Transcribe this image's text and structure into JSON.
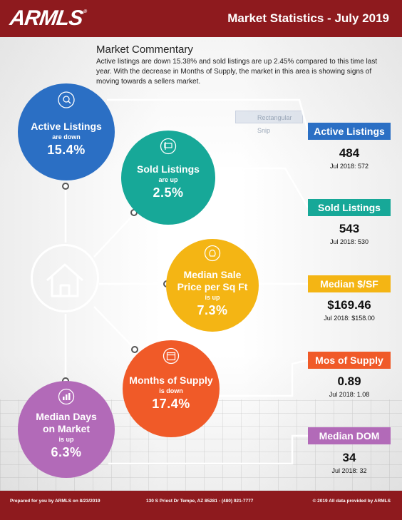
{
  "header": {
    "logo": "ARMLS",
    "logo_mark": "®",
    "title": "Market Statistics - July 2019"
  },
  "commentary": {
    "title": "Market Commentary",
    "text": "Active listings are down 15.38% and sold listings are up 2.45% compared to this time last year. With the decrease in Months of Supply, the market in this area is showing signs of moving towards a sellers market."
  },
  "ghost_label": "Rectangular Snip",
  "circles": {
    "active": {
      "title": "Active Listings",
      "sub": "are down",
      "value": "15.4%",
      "icon": "magnifier-house-icon"
    },
    "sold": {
      "title": "Sold Listings",
      "sub": "are up",
      "value": "2.5%",
      "icon": "sold-sign-icon"
    },
    "median": {
      "title_1": "Median Sale",
      "title_2": "Price per Sq Ft",
      "sub": "is up",
      "value": "7.3%",
      "icon": "money-bag-icon"
    },
    "mos": {
      "title": "Months of Supply",
      "sub": "is down",
      "value": "17.4%",
      "icon": "calendar-icon"
    },
    "dom": {
      "title_1": "Median Days",
      "title_2": "on Market",
      "sub": "is up",
      "value": "6.3%",
      "icon": "bar-chart-icon"
    }
  },
  "stats": {
    "active": {
      "label": "Active Listings",
      "value": "484",
      "prior": "Jul 2018: 572"
    },
    "sold": {
      "label": "Sold Listings",
      "value": "543",
      "prior": "Jul 2018: 530"
    },
    "median": {
      "label": "Median $/SF",
      "value": "$169.46",
      "prior": "Jul 2018: $158.00"
    },
    "mos": {
      "label": "Mos of Supply",
      "value": "0.89",
      "prior": "Jul 2018: 1.08"
    },
    "dom": {
      "label": "Median DOM",
      "value": "34",
      "prior": "Jul 2018: 32"
    }
  },
  "colors": {
    "brand": "#8e1a1e",
    "active": "#2b6fc4",
    "sold": "#17a898",
    "median": "#f4b514",
    "mos": "#f05a28",
    "dom": "#b26ab8"
  },
  "footer": {
    "left": "Prepared for you by ARMLS on 8/23/2019",
    "middle": "130 S Priest Dr  Tempe, AZ 85281 - (480) 921-7777",
    "right": "© 2019 All data provided by ARMLS"
  }
}
